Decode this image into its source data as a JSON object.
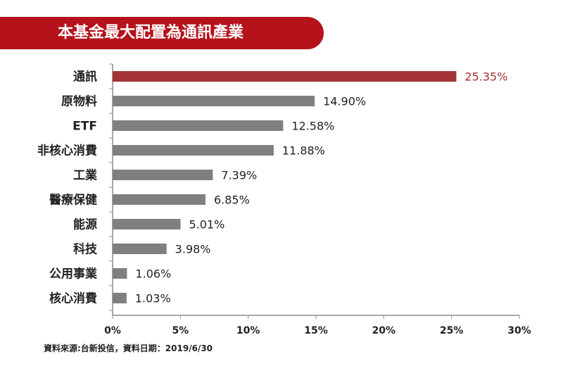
{
  "title": "本基金最大配置為通訊產業",
  "footnote": "資料來源:台新投信，資料日期：2019/6/30",
  "colors": {
    "banner": "#b5121b",
    "highlight_bar": "#a33337",
    "highlight_label": "#a33337",
    "bar": "#7f7f7f",
    "axis": "#8c8c8c",
    "text": "#222222"
  },
  "chart_data": {
    "type": "bar",
    "orientation": "horizontal",
    "categories": [
      "通訊",
      "原物料",
      "ETF",
      "非核心消費",
      "工業",
      "醫療保健",
      "能源",
      "科技",
      "公用事業",
      "核心消費"
    ],
    "values": [
      25.35,
      14.9,
      12.58,
      11.88,
      7.39,
      6.85,
      5.01,
      3.98,
      1.06,
      1.03
    ],
    "value_labels": [
      "25.35%",
      "14.90%",
      "12.58%",
      "11.88%",
      "7.39%",
      "6.85%",
      "5.01%",
      "3.98%",
      "1.06%",
      "1.03%"
    ],
    "highlight_index": 0,
    "xlim": [
      0,
      30
    ],
    "xticks": [
      0,
      5,
      10,
      15,
      20,
      25,
      30
    ],
    "xtick_labels": [
      "0%",
      "5%",
      "10%",
      "15%",
      "20%",
      "25%",
      "30%"
    ],
    "grid": false,
    "legend": "none"
  }
}
